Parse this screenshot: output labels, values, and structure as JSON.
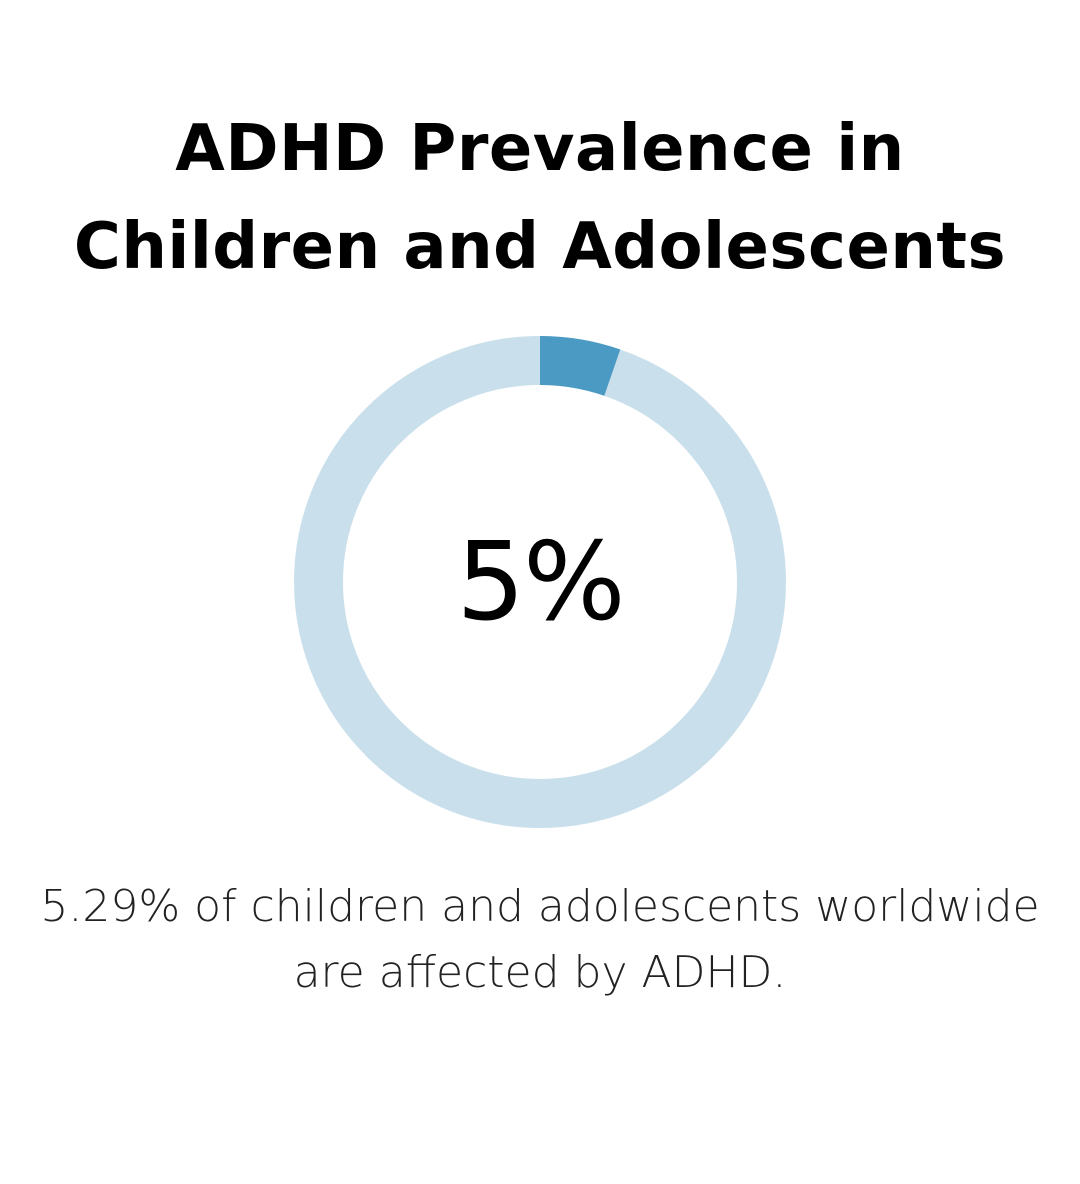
{
  "title": {
    "line1": "ADHD Prevalence in",
    "line2": "Children and Adolescents"
  },
  "chart_data": {
    "type": "pie",
    "variant": "donut",
    "value": 5.29,
    "max": 100,
    "center_label": "5%",
    "colors": {
      "filled": "#4a9ac4",
      "track": "#c9e0ec"
    }
  },
  "caption": {
    "line1": "5.29% of children and adolescents worldwide",
    "line2": "are affected by ADHD."
  }
}
